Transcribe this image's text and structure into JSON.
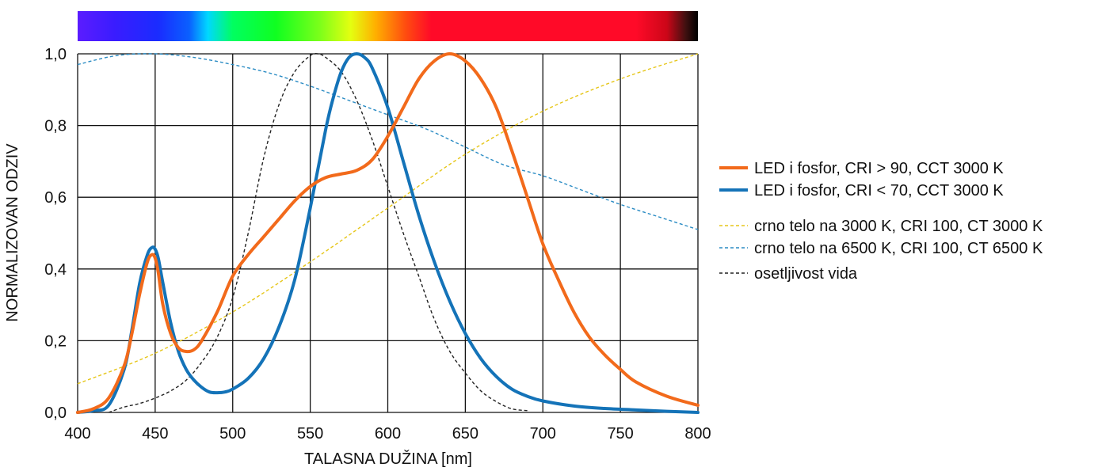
{
  "chart_data": {
    "type": "line",
    "xlabel": "TALASNA DUŽINA [nm]",
    "ylabel": "NORMALIZOVAN ODZIV",
    "xlim": [
      400,
      800
    ],
    "ylim": [
      0,
      1
    ],
    "x_ticks": [
      400,
      450,
      500,
      550,
      600,
      650,
      700,
      750,
      800
    ],
    "x_tick_labels": [
      "400",
      "450",
      "500",
      "550",
      "600",
      "650",
      "700",
      "750",
      "800"
    ],
    "y_ticks": [
      0,
      0.2,
      0.4,
      0.6,
      0.8,
      1.0
    ],
    "y_tick_labels": [
      "0,0",
      "0,2",
      "0,4",
      "0,6",
      "0,8",
      "1,0"
    ],
    "grid": true,
    "legend_position": "right",
    "spectrum_bar": true,
    "series": [
      {
        "name": "LED i fosfor, CRI > 90, CCT 3000 K",
        "color": "#f26a1b",
        "style": "solid",
        "x": [
          400,
          410,
          420,
          430,
          435,
          440,
          445,
          448,
          450,
          452,
          455,
          460,
          465,
          470,
          475,
          480,
          490,
          500,
          510,
          520,
          530,
          540,
          550,
          560,
          570,
          580,
          590,
          600,
          610,
          620,
          630,
          640,
          650,
          660,
          670,
          680,
          690,
          700,
          710,
          720,
          730,
          740,
          750,
          760,
          780,
          800
        ],
        "y": [
          0.0,
          0.01,
          0.04,
          0.13,
          0.22,
          0.33,
          0.42,
          0.44,
          0.43,
          0.39,
          0.3,
          0.22,
          0.18,
          0.17,
          0.175,
          0.2,
          0.28,
          0.38,
          0.44,
          0.49,
          0.54,
          0.59,
          0.63,
          0.655,
          0.665,
          0.675,
          0.705,
          0.77,
          0.85,
          0.93,
          0.98,
          1.0,
          0.98,
          0.93,
          0.85,
          0.73,
          0.6,
          0.47,
          0.37,
          0.28,
          0.21,
          0.16,
          0.12,
          0.085,
          0.045,
          0.02
        ]
      },
      {
        "name": "LED i fosfor, CRI < 70, CCT 3000 K",
        "color": "#1473b8",
        "style": "solid",
        "x": [
          400,
          410,
          420,
          430,
          435,
          440,
          445,
          448,
          450,
          452,
          455,
          460,
          465,
          470,
          475,
          480,
          485,
          490,
          495,
          500,
          510,
          520,
          530,
          540,
          550,
          560,
          565,
          570,
          575,
          580,
          585,
          590,
          600,
          610,
          620,
          630,
          640,
          650,
          660,
          670,
          680,
          690,
          700,
          720,
          740,
          760,
          780,
          800
        ],
        "y": [
          0.0,
          0.005,
          0.02,
          0.12,
          0.23,
          0.36,
          0.44,
          0.46,
          0.455,
          0.43,
          0.36,
          0.25,
          0.17,
          0.12,
          0.09,
          0.07,
          0.057,
          0.055,
          0.057,
          0.065,
          0.095,
          0.15,
          0.24,
          0.37,
          0.57,
          0.79,
          0.88,
          0.95,
          0.99,
          1.0,
          0.99,
          0.96,
          0.85,
          0.7,
          0.55,
          0.42,
          0.31,
          0.22,
          0.15,
          0.1,
          0.065,
          0.045,
          0.032,
          0.018,
          0.011,
          0.007,
          0.003,
          0.0
        ]
      },
      {
        "name": "crno telo na 3000 K, CRI 100, CT 3000 K",
        "color": "#e6c619",
        "style": "dashed",
        "x": [
          400,
          450,
          500,
          550,
          600,
          650,
          700,
          750,
          800
        ],
        "y": [
          0.08,
          0.165,
          0.28,
          0.42,
          0.57,
          0.72,
          0.84,
          0.93,
          1.0
        ]
      },
      {
        "name": "crno telo na 6500 K, CRI 100, CT 6500 K",
        "color": "#2b8cc4",
        "style": "dashed",
        "x": [
          400,
          425,
          450,
          475,
          500,
          525,
          550,
          575,
          600,
          625,
          650,
          675,
          700,
          725,
          750,
          775,
          800
        ],
        "y": [
          0.97,
          0.995,
          1.0,
          0.99,
          0.97,
          0.945,
          0.91,
          0.87,
          0.83,
          0.79,
          0.74,
          0.69,
          0.66,
          0.62,
          0.58,
          0.545,
          0.51
        ]
      },
      {
        "name": "osetljivost vida",
        "color": "#222222",
        "style": "dashed",
        "x": [
          420,
          430,
          440,
          450,
          460,
          470,
          480,
          490,
          500,
          510,
          520,
          530,
          540,
          550,
          555,
          560,
          570,
          580,
          590,
          600,
          610,
          620,
          630,
          640,
          650,
          660,
          670,
          680,
          690
        ],
        "y": [
          0.0,
          0.015,
          0.025,
          0.04,
          0.06,
          0.09,
          0.14,
          0.21,
          0.32,
          0.5,
          0.71,
          0.86,
          0.95,
          0.995,
          1.0,
          0.99,
          0.95,
          0.87,
          0.76,
          0.63,
          0.5,
          0.38,
          0.26,
          0.17,
          0.11,
          0.06,
          0.03,
          0.01,
          0.005
        ]
      }
    ]
  }
}
